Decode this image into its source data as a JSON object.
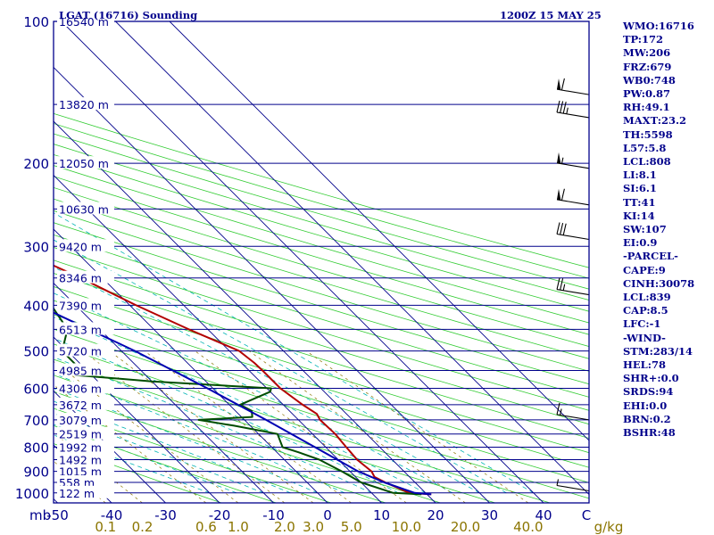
{
  "chart_data": {
    "type": "line",
    "title": "LGAT (16716) Sounding",
    "time_label": "1200Z 15 MAY 25",
    "y_axis_unit": "mb",
    "x_axis_unit": "C",
    "mixing_ratio_unit": "g/kg",
    "pressure_levels": [
      100,
      200,
      300,
      400,
      500,
      600,
      700,
      800,
      900,
      1000
    ],
    "temperature_ticks": [
      -50,
      -40,
      -30,
      -20,
      -10,
      0,
      10,
      20,
      30,
      40
    ],
    "mixing_ratio_labels": [
      "0.1",
      "0.2",
      "0.6",
      "1.0",
      "2.0",
      "3.0",
      "5.0",
      "10.0",
      "20.0",
      "40.0"
    ],
    "height_labels": [
      {
        "p": 100,
        "label": "16540 m"
      },
      {
        "p": 150,
        "label": "13820 m"
      },
      {
        "p": 200,
        "label": "12050 m"
      },
      {
        "p": 250,
        "label": "10630 m"
      },
      {
        "p": 300,
        "label": "9420 m"
      },
      {
        "p": 350,
        "label": "8346 m"
      },
      {
        "p": 400,
        "label": "7390 m"
      },
      {
        "p": 450,
        "label": "6513 m"
      },
      {
        "p": 500,
        "label": "5720 m"
      },
      {
        "p": 550,
        "label": "4985 m"
      },
      {
        "p": 600,
        "label": "4306 m"
      },
      {
        "p": 650,
        "label": "3672 m"
      },
      {
        "p": 700,
        "label": "3079 m"
      },
      {
        "p": 750,
        "label": "2519 m"
      },
      {
        "p": 800,
        "label": "1992 m"
      },
      {
        "p": 850,
        "label": "1492 m"
      },
      {
        "p": 900,
        "label": "1015 m"
      },
      {
        "p": 950,
        "label": "558 m"
      },
      {
        "p": 1000,
        "label": "122 m"
      }
    ],
    "series": [
      {
        "name": "",
        "color": "#b30000",
        "points": [
          [
            1007,
            20.8
          ],
          [
            1000,
            17.0
          ],
          [
            950,
            14.5
          ],
          [
            925,
            13.5
          ],
          [
            900,
            14.0
          ],
          [
            850,
            13.5
          ],
          [
            800,
            13.8
          ],
          [
            750,
            14.2
          ],
          [
            700,
            14.0
          ],
          [
            680,
            14.5
          ],
          [
            650,
            13.6
          ],
          [
            600,
            12.5
          ],
          [
            550,
            12.5
          ],
          [
            530,
            12.4
          ],
          [
            500,
            11.8
          ],
          [
            450,
            6.5
          ],
          [
            400,
            1.2
          ],
          [
            350,
            -4.0
          ],
          [
            300,
            -11.0
          ],
          [
            250,
            -20.5
          ],
          [
            200,
            -32.0
          ],
          [
            180,
            -33.0
          ],
          [
            170,
            -30.5
          ],
          [
            150,
            -32.5
          ],
          [
            140,
            -29.0
          ],
          [
            125,
            -28.5
          ],
          [
            110,
            -30.0
          ],
          [
            100,
            -34.5
          ]
        ]
      },
      {
        "name": "",
        "color": "#004d00",
        "points": [
          [
            1007,
            19.0
          ],
          [
            1000,
            14.0
          ],
          [
            950,
            10.0
          ],
          [
            900,
            8.5
          ],
          [
            850,
            6.5
          ],
          [
            820,
            4.0
          ],
          [
            800,
            2.0
          ],
          [
            750,
            3.5
          ],
          [
            720,
            -3.0
          ],
          [
            700,
            -8.5
          ],
          [
            690,
            2.0
          ],
          [
            670,
            3.0
          ],
          [
            650,
            2.0
          ],
          [
            610,
            10.0
          ],
          [
            600,
            10.8
          ],
          [
            580,
            -10.0
          ],
          [
            560,
            -25.0
          ],
          [
            540,
            -21.0
          ],
          [
            500,
            -21.0
          ],
          [
            450,
            -16.0
          ],
          [
            400,
            -14.5
          ],
          [
            350,
            -13.5
          ],
          [
            300,
            -22.5
          ],
          [
            280,
            -29.5
          ],
          [
            250,
            -33.0
          ],
          [
            200,
            -45.0
          ],
          [
            185,
            -45.5
          ],
          [
            165,
            -52.0
          ],
          [
            150,
            -53.0
          ],
          [
            140,
            -51.0
          ],
          [
            120,
            -54.0
          ],
          [
            105,
            -64.5
          ],
          [
            100,
            -66.5
          ]
        ]
      },
      {
        "name": "",
        "color": "#0000b3",
        "points": [
          [
            1007,
            20.8
          ],
          [
            1000,
            18.0
          ],
          [
            950,
            14.3
          ],
          [
            900,
            11.5
          ],
          [
            850,
            9.8
          ],
          [
            800,
            8.0
          ],
          [
            700,
            4.0
          ],
          [
            600,
            -1.0
          ],
          [
            500,
            -7.5
          ],
          [
            400,
            -17.0
          ],
          [
            300,
            -32.0
          ],
          [
            250,
            -43.0
          ],
          [
            200,
            -58.0
          ],
          [
            150,
            -77.0
          ],
          [
            115,
            -94.0
          ]
        ]
      }
    ],
    "wind_barbs": [
      {
        "p": 143,
        "speed_kt": 60
      },
      {
        "p": 160,
        "speed_kt": 35
      },
      {
        "p": 205,
        "speed_kt": 55
      },
      {
        "p": 245,
        "speed_kt": 60
      },
      {
        "p": 290,
        "speed_kt": 30
      },
      {
        "p": 380,
        "speed_kt": 25
      },
      {
        "p": 700,
        "speed_kt": 15
      },
      {
        "p": 990,
        "speed_kt": 5
      }
    ]
  },
  "indices": [
    "WMO:16716",
    "TP:172",
    "MW:206",
    "FRZ:679",
    "WB0:748",
    "PW:0.87",
    "RH:49.1",
    "MAXT:23.2",
    "TH:5598",
    "L57:5.8",
    "LCL:808",
    "LI:8.1",
    "SI:6.1",
    "TT:41",
    "KI:14",
    "SW:107",
    "EI:0.9",
    "-PARCEL-",
    "CAPE:9",
    "CINH:30078",
    "LCL:839",
    "CAP:8.5",
    "LFC:-1",
    "-WIND-",
    "STM:283/14",
    "HEL:78",
    "SHR+:0.0",
    "SRDS:94",
    "EHI:0.0",
    "BRN:0.2",
    "BSHR:48"
  ]
}
